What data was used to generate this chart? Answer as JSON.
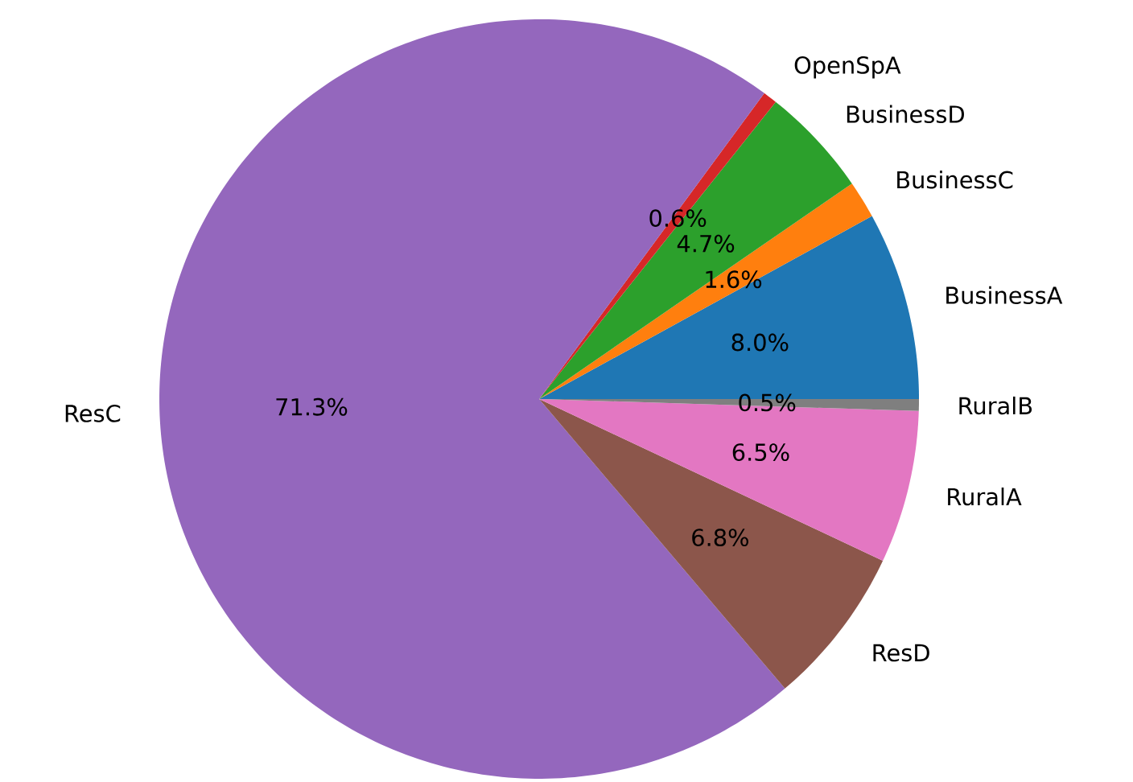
{
  "chart_data": {
    "type": "pie",
    "categories": [
      "BusinessA",
      "BusinessC",
      "BusinessD",
      "OpenSpA",
      "ResC",
      "ResD",
      "RuralA",
      "RuralB"
    ],
    "values": [
      8.0,
      1.6,
      4.7,
      0.6,
      71.3,
      6.8,
      6.5,
      0.5
    ],
    "colors": [
      "#1f77b4",
      "#ff7f0e",
      "#2ca02c",
      "#d62728",
      "#9467bd",
      "#8c564b",
      "#e377c2",
      "#7f7f7f"
    ],
    "value_labels": [
      "8.0%",
      "1.6%",
      "4.7%",
      "0.6%",
      "71.3%",
      "6.8%",
      "6.5%",
      "0.5%"
    ]
  }
}
